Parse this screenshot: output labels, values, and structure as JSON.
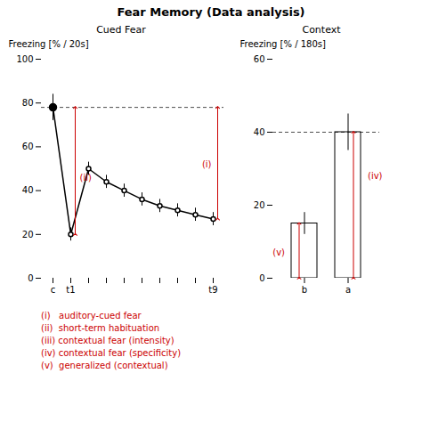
{
  "title": "Fear Memory (Data analysis)",
  "chart_data": [
    {
      "type": "line",
      "title": "Cued Fear",
      "categories": [
        "c",
        "t1",
        null,
        null,
        null,
        null,
        null,
        null,
        null,
        "t9"
      ],
      "values": [
        78,
        20,
        50,
        44,
        40,
        36,
        33,
        31,
        29,
        27
      ],
      "errors": [
        6,
        3,
        3,
        3,
        3,
        3,
        3,
        3,
        3,
        3
      ],
      "color": "#000000",
      "marker": "o",
      "ylabel": "Freezing [% / 20s]",
      "ylim": [
        0,
        100
      ],
      "yticks": [
        0,
        20,
        40,
        60,
        80,
        100
      ],
      "reference_line": 78,
      "annotations": [
        {
          "text": "(i)",
          "x": "t9",
          "y": 52,
          "color": "#cc0000"
        },
        {
          "text": "(ii)",
          "x": "t1",
          "y": 46,
          "color": "#cc0000"
        }
      ],
      "grid": false
    },
    {
      "type": "bar",
      "title": "Context",
      "categories": [
        "b",
        "a"
      ],
      "values": [
        15,
        40
      ],
      "errors": [
        3,
        5
      ],
      "color": "#ffffff",
      "ylabel": "Freezing [% / 180s]",
      "ylim": [
        0,
        60
      ],
      "yticks": [
        0,
        20,
        40,
        60
      ],
      "reference_line": 40,
      "annotations": [
        {
          "text": "(iv)",
          "x": "a",
          "y": 28,
          "color": "#cc0000"
        },
        {
          "text": "(v)",
          "x": "b",
          "y": 7,
          "color": "#cc0000"
        }
      ],
      "grid": false
    }
  ],
  "legend_items": [
    "(i)   auditory-cued fear",
    "(ii)  short-term habituation",
    "(iii) contextual fear (intensity)",
    "(iv) contextual fear (specificity)",
    "(v)  generalized (contextual)"
  ],
  "legend_color": "#cc0000"
}
